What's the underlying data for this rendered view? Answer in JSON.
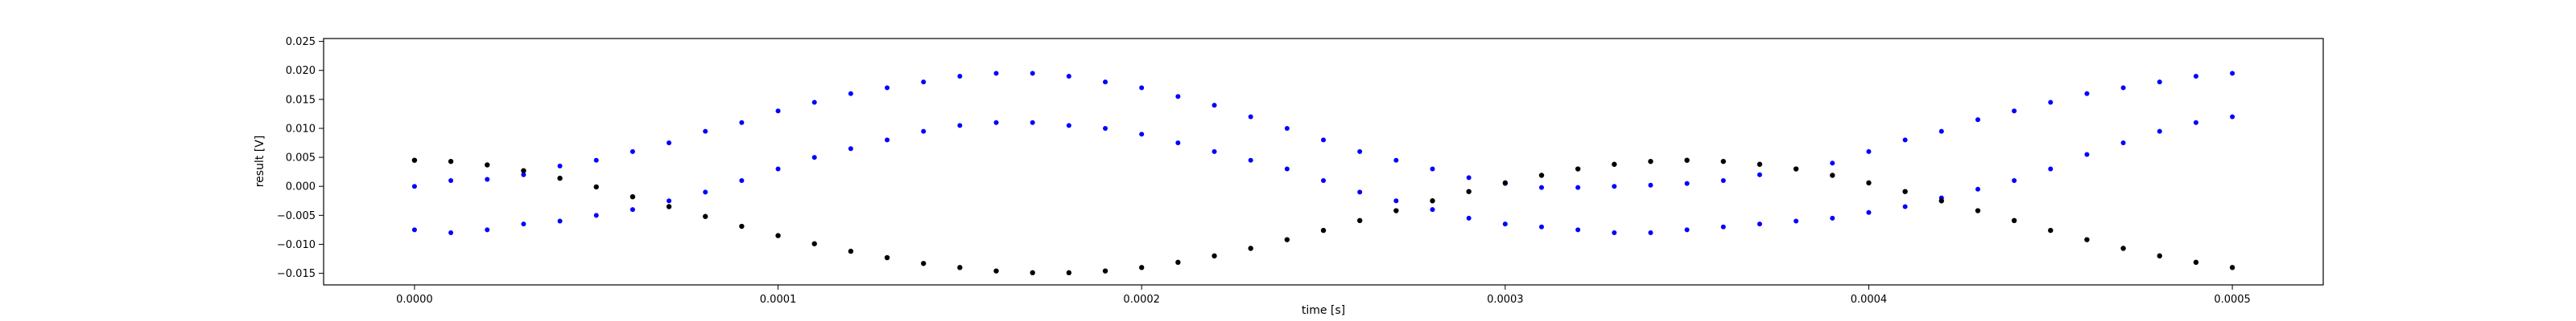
{
  "chart_data": {
    "type": "scatter",
    "title": "",
    "xlabel": "time [s]",
    "ylabel": "result [V]",
    "xlim": [
      -2.5e-05,
      0.000525
    ],
    "ylim": [
      -0.017,
      0.0255
    ],
    "xticks": [
      0,
      0.0001,
      0.0002,
      0.0003,
      0.0004,
      0.0005
    ],
    "xtick_labels": [
      "0.0000",
      "0.0001",
      "0.0002",
      "0.0003",
      "0.0004",
      "0.0005"
    ],
    "yticks": [
      -0.015,
      -0.01,
      -0.005,
      0.0,
      0.005,
      0.01,
      0.015,
      0.02,
      0.025
    ],
    "ytick_labels": [
      "−0.015",
      "−0.010",
      "−0.005",
      "0.000",
      "0.005",
      "0.010",
      "0.015",
      "0.020",
      "0.025"
    ],
    "grid": false,
    "series": [
      {
        "color": "#0000ff",
        "marker_style": "dot",
        "x": [
          0,
          1e-05,
          2e-05,
          3e-05,
          4e-05,
          5e-05,
          6e-05,
          7e-05,
          8e-05,
          9e-05,
          0.0001,
          0.00011,
          0.00012,
          0.00013,
          0.00014,
          0.00015,
          0.00016,
          0.00017,
          0.00018,
          0.00019,
          0.0002,
          0.00021,
          0.00022,
          0.00023,
          0.00024,
          0.00025,
          0.00026,
          0.00027,
          0.00028,
          0.00029,
          0.0003,
          0.00031,
          0.00032,
          0.00033,
          0.00034,
          0.00035,
          0.00036,
          0.00037,
          0.00038,
          0.00039,
          0.0004,
          0.00041,
          0.00042,
          0.00043,
          0.00044,
          0.00045,
          0.00046,
          0.00047,
          0.00048,
          0.00049,
          0.0005
        ],
        "y": [
          0.0,
          0.001,
          0.0012,
          0.002,
          0.0035,
          0.0045,
          0.006,
          0.0075,
          0.0095,
          0.011,
          0.013,
          0.0145,
          0.016,
          0.017,
          0.018,
          0.019,
          0.0195,
          0.0195,
          0.019,
          0.018,
          0.017,
          0.0155,
          0.014,
          0.012,
          0.01,
          0.008,
          0.006,
          0.0045,
          0.003,
          0.0015,
          0.0005,
          -0.0002,
          -0.0002,
          0.0,
          0.0002,
          0.0005,
          0.001,
          0.002,
          0.003,
          0.004,
          0.006,
          0.008,
          0.0095,
          0.0115,
          0.013,
          0.0145,
          0.016,
          0.017,
          0.018,
          0.019,
          0.0195
        ]
      },
      {
        "color": "#0000ff",
        "marker_style": "dot",
        "x": [
          0,
          1e-05,
          2e-05,
          3e-05,
          4e-05,
          5e-05,
          6e-05,
          7e-05,
          8e-05,
          9e-05,
          0.0001,
          0.00011,
          0.00012,
          0.00013,
          0.00014,
          0.00015,
          0.00016,
          0.00017,
          0.00018,
          0.00019,
          0.0002,
          0.00021,
          0.00022,
          0.00023,
          0.00024,
          0.00025,
          0.00026,
          0.00027,
          0.00028,
          0.00029,
          0.0003,
          0.00031,
          0.00032,
          0.00033,
          0.00034,
          0.00035,
          0.00036,
          0.00037,
          0.00038,
          0.00039,
          0.0004,
          0.00041,
          0.00042,
          0.00043,
          0.00044,
          0.00045,
          0.00046,
          0.00047,
          0.00048,
          0.00049,
          0.0005
        ],
        "y": [
          -0.0075,
          -0.008,
          -0.0075,
          -0.0065,
          -0.006,
          -0.005,
          -0.004,
          -0.0025,
          -0.001,
          0.001,
          0.003,
          0.005,
          0.0065,
          0.008,
          0.0095,
          0.0105,
          0.011,
          0.011,
          0.0105,
          0.01,
          0.009,
          0.0075,
          0.006,
          0.0045,
          0.003,
          0.001,
          -0.001,
          -0.0025,
          -0.004,
          -0.0055,
          -0.0065,
          -0.007,
          -0.0075,
          -0.008,
          -0.008,
          -0.0075,
          -0.007,
          -0.0065,
          -0.006,
          -0.0055,
          -0.0045,
          -0.0035,
          -0.002,
          -0.0005,
          0.001,
          0.003,
          0.0055,
          0.0075,
          0.0095,
          0.011,
          0.012
        ]
      },
      {
        "color": "#000000",
        "marker_style": "dot",
        "x": [
          0,
          1e-05,
          2e-05,
          3e-05,
          4e-05,
          5e-05,
          6e-05,
          7e-05,
          8e-05,
          9e-05,
          0.0001,
          0.00011,
          0.00012,
          0.00013,
          0.00014,
          0.00015,
          0.00016,
          0.00017,
          0.00018,
          0.00019,
          0.0002,
          0.00021,
          0.00022,
          0.00023,
          0.00024,
          0.00025,
          0.00026,
          0.00027,
          0.00028,
          0.00029,
          0.0003,
          0.00031,
          0.00032,
          0.00033,
          0.00034,
          0.00035,
          0.00036,
          0.00037,
          0.00038,
          0.00039,
          0.0004,
          0.00041,
          0.00042,
          0.00043,
          0.00044,
          0.00045,
          0.00046,
          0.00047,
          0.00048,
          0.00049,
          0.0005
        ],
        "y": [
          0.0045,
          0.0043,
          0.0037,
          0.0027,
          0.0014,
          -0.0001,
          -0.0018,
          -0.0035,
          -0.0052,
          -0.0069,
          -0.0085,
          -0.0099,
          -0.0112,
          -0.0123,
          -0.0133,
          -0.014,
          -0.0146,
          -0.0149,
          -0.0149,
          -0.0146,
          -0.014,
          -0.0131,
          -0.012,
          -0.0107,
          -0.0092,
          -0.0076,
          -0.0059,
          -0.0042,
          -0.0025,
          -0.0009,
          0.0006,
          0.0019,
          0.003,
          0.0038,
          0.0043,
          0.0045,
          0.0043,
          0.0038,
          0.003,
          0.0019,
          0.0006,
          -0.0009,
          -0.0025,
          -0.0042,
          -0.0059,
          -0.0076,
          -0.0092,
          -0.0107,
          -0.012,
          -0.0131,
          -0.014
        ]
      }
    ]
  }
}
